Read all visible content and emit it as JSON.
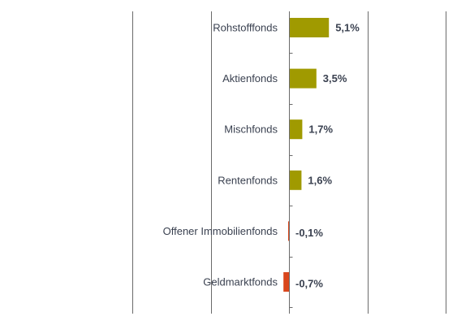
{
  "colors": {
    "positive": "#a09a00",
    "negative": "#d9461c",
    "grid": "#6b6b6b",
    "axis": "#6b6b6b",
    "text": "#3a4150"
  },
  "chart_data": {
    "type": "bar",
    "orientation": "horizontal",
    "title": "",
    "xlabel": "",
    "ylabel": "",
    "grid": true,
    "legend": "none",
    "categories": [
      "Rohstofffonds",
      "Aktienfonds",
      "Mischfonds",
      "Rentenfonds",
      "Offener Immobilienfonds",
      "Geldmarktfonds"
    ],
    "values": [
      5.1,
      3.5,
      1.7,
      1.6,
      -0.1,
      -0.7
    ],
    "value_labels": [
      "5,1%",
      "3,5%",
      "1,7%",
      "1,6%",
      "-0,1%",
      "-0,7%"
    ],
    "xlim": [
      -20,
      20
    ]
  }
}
